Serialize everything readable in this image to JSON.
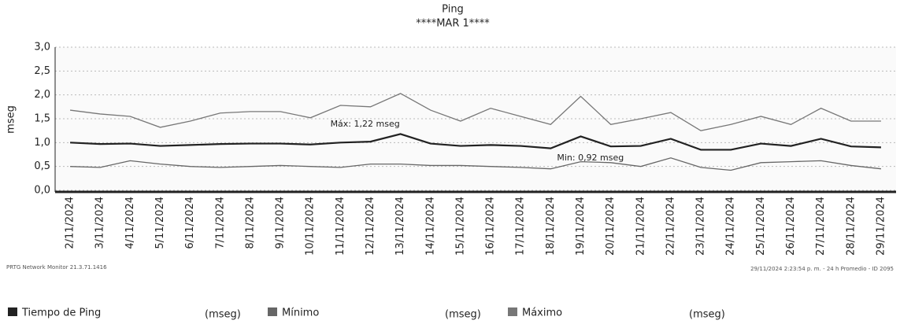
{
  "chart_data": {
    "type": "line",
    "title": "Ping",
    "subtitle": "****MAR 1****",
    "y_label": "mseg",
    "categories": [
      "2/11/2024",
      "3/11/2024",
      "4/11/2024",
      "5/11/2024",
      "6/11/2024",
      "7/11/2024",
      "8/11/2024",
      "9/11/2024",
      "10/11/2024",
      "11/11/2024",
      "12/11/2024",
      "13/11/2024",
      "14/11/2024",
      "15/11/2024",
      "16/11/2024",
      "17/11/2024",
      "18/11/2024",
      "19/11/2024",
      "20/11/2024",
      "21/11/2024",
      "22/11/2024",
      "23/11/2024",
      "24/11/2024",
      "25/11/2024",
      "26/11/2024",
      "27/11/2024",
      "28/11/2024",
      "29/11/2024"
    ],
    "series": [
      {
        "name": "Tiempo de Ping",
        "unit": "(mseg)",
        "color": "#222222",
        "values": [
          1.0,
          0.97,
          0.98,
          0.93,
          0.95,
          0.97,
          0.98,
          0.98,
          0.96,
          1.0,
          1.02,
          1.18,
          0.98,
          0.93,
          0.95,
          0.93,
          0.88,
          1.13,
          0.92,
          0.93,
          1.08,
          0.85,
          0.85,
          0.98,
          0.93,
          1.08,
          0.92,
          0.9
        ]
      },
      {
        "name": "Mínimo",
        "unit": "(mseg)",
        "color": "#666666",
        "values": [
          0.5,
          0.48,
          0.62,
          0.55,
          0.5,
          0.48,
          0.5,
          0.52,
          0.5,
          0.48,
          0.55,
          0.55,
          0.52,
          0.52,
          0.5,
          0.48,
          0.45,
          0.6,
          0.58,
          0.5,
          0.68,
          0.48,
          0.42,
          0.58,
          0.6,
          0.62,
          0.52,
          0.45
        ]
      },
      {
        "name": "Máximo",
        "unit": "(mseg)",
        "color": "#777777",
        "values": [
          1.68,
          1.6,
          1.55,
          1.32,
          1.45,
          1.62,
          1.65,
          1.65,
          1.52,
          1.78,
          1.75,
          2.03,
          1.68,
          1.45,
          1.72,
          1.55,
          1.38,
          1.97,
          1.38,
          1.5,
          1.63,
          1.25,
          1.38,
          1.55,
          1.38,
          1.72,
          1.45,
          1.45
        ]
      }
    ],
    "ylim": [
      0,
      3
    ],
    "yticks": [
      {
        "value": 0,
        "label": "0,0"
      },
      {
        "value": 0.5,
        "label": "0,5"
      },
      {
        "value": 1,
        "label": "1,0"
      },
      {
        "value": 1.5,
        "label": "1,5"
      },
      {
        "value": 2,
        "label": "2,0"
      },
      {
        "value": 2.5,
        "label": "2,5"
      },
      {
        "value": 3,
        "label": "3,0"
      }
    ],
    "grid": true,
    "annotations": [
      "Máx: 1,22 mseg",
      "Min: 0,92 mseg"
    ],
    "footer_left": "PRTG Network Monitor 21.3.71.1416",
    "footer_right": "29/11/2024 2:23:54 p. m. - 24 h Promedio - ID 2095"
  }
}
